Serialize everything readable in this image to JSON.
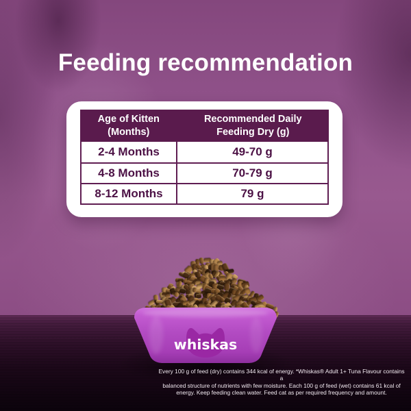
{
  "title": "Feeding recommendation",
  "table": {
    "header_col1": "Age of Kitten (Months)",
    "header_col2": "Recommended Daily Feeding Dry (g)",
    "rows": [
      {
        "age": "2-4 Months",
        "amount": "49-70 g"
      },
      {
        "age": "4-8 Months",
        "amount": "70-79 g"
      },
      {
        "age": "8-12 Months",
        "amount": "79 g"
      }
    ]
  },
  "bowl": {
    "brand_logo": "whiskas"
  },
  "disclaimer": {
    "line1": "Every 100 g of feed (dry) contains 344 kcal of energy. *Whiskas® Adult 1+ Tuna Flavour contains a",
    "line2": "balanced structure of nutrients with few moisture. Each 100 g of feed (wet) contains 61 kcal of",
    "line3": "energy. Keep feeding clean water. Feed cat as per required frequency and amount."
  },
  "colors": {
    "wall_purple": "#8f5289",
    "wood_dark": "#1c0819",
    "card_white": "#ffffff",
    "header_plum": "#5a1b4d",
    "table_text_plum": "#4c1145",
    "table_border_plum": "#5f1d52",
    "bowl_magenta": "#b44fc4",
    "logo_cat_magenta": "#9a28a4",
    "title_white": "#ffffff"
  }
}
